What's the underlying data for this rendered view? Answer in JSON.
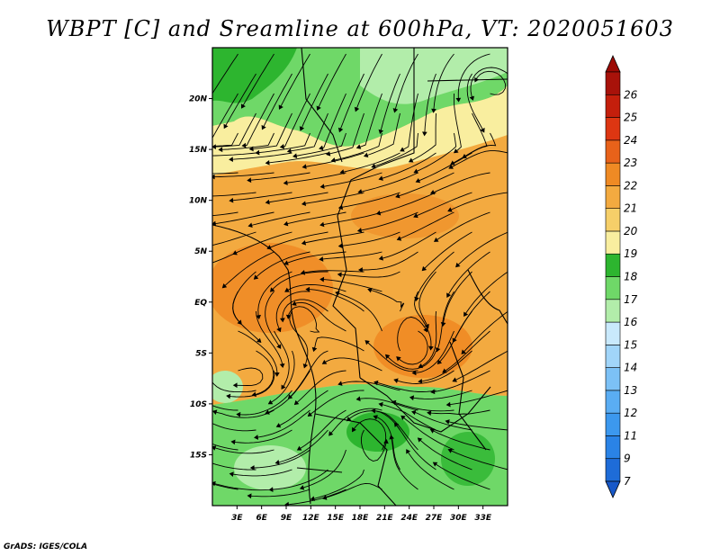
{
  "title": "WBPT [C] and Sreamline at 600hPa, VT: 2020051603",
  "footer": "GrADS: IGES/COLA",
  "map": {
    "lon_range": [
      0,
      36
    ],
    "lat_range": [
      -20,
      25
    ],
    "lat_ticks": [
      {
        "value": 20,
        "label": "20N"
      },
      {
        "value": 15,
        "label": "15N"
      },
      {
        "value": 10,
        "label": "10N"
      },
      {
        "value": 5,
        "label": "5N"
      },
      {
        "value": 0,
        "label": "EQ"
      },
      {
        "value": -5,
        "label": "5S"
      },
      {
        "value": -10,
        "label": "10S"
      },
      {
        "value": -15,
        "label": "15S"
      }
    ],
    "lon_ticks": [
      {
        "value": 3,
        "label": "3E"
      },
      {
        "value": 6,
        "label": "6E"
      },
      {
        "value": 9,
        "label": "9E"
      },
      {
        "value": 12,
        "label": "12E"
      },
      {
        "value": 15,
        "label": "15E"
      },
      {
        "value": 18,
        "label": "18E"
      },
      {
        "value": 21,
        "label": "21E"
      },
      {
        "value": 24,
        "label": "24E"
      },
      {
        "value": 27,
        "label": "27E"
      },
      {
        "value": 30,
        "label": "30E"
      },
      {
        "value": 33,
        "label": "33E"
      }
    ]
  },
  "colorbar": {
    "levels": [
      "7",
      "9",
      "11",
      "12",
      "13",
      "14",
      "15",
      "16",
      "17",
      "18",
      "19",
      "20",
      "21",
      "22",
      "23",
      "24",
      "25",
      "26"
    ],
    "colors": [
      "#1e6cd8",
      "#2a83e6",
      "#3c98ee",
      "#5aadf3",
      "#7cc1f6",
      "#a1d5f9",
      "#c9e9fc",
      "#b2edaa",
      "#6fd868",
      "#2db52f",
      "#f9ee9f",
      "#f6cf69",
      "#f3aa40",
      "#ef8a24",
      "#e8621a",
      "#dd3612",
      "#c41f0c",
      "#a8120a"
    ],
    "low_color": "#1758c8",
    "high_color": "#9c0a05"
  }
}
